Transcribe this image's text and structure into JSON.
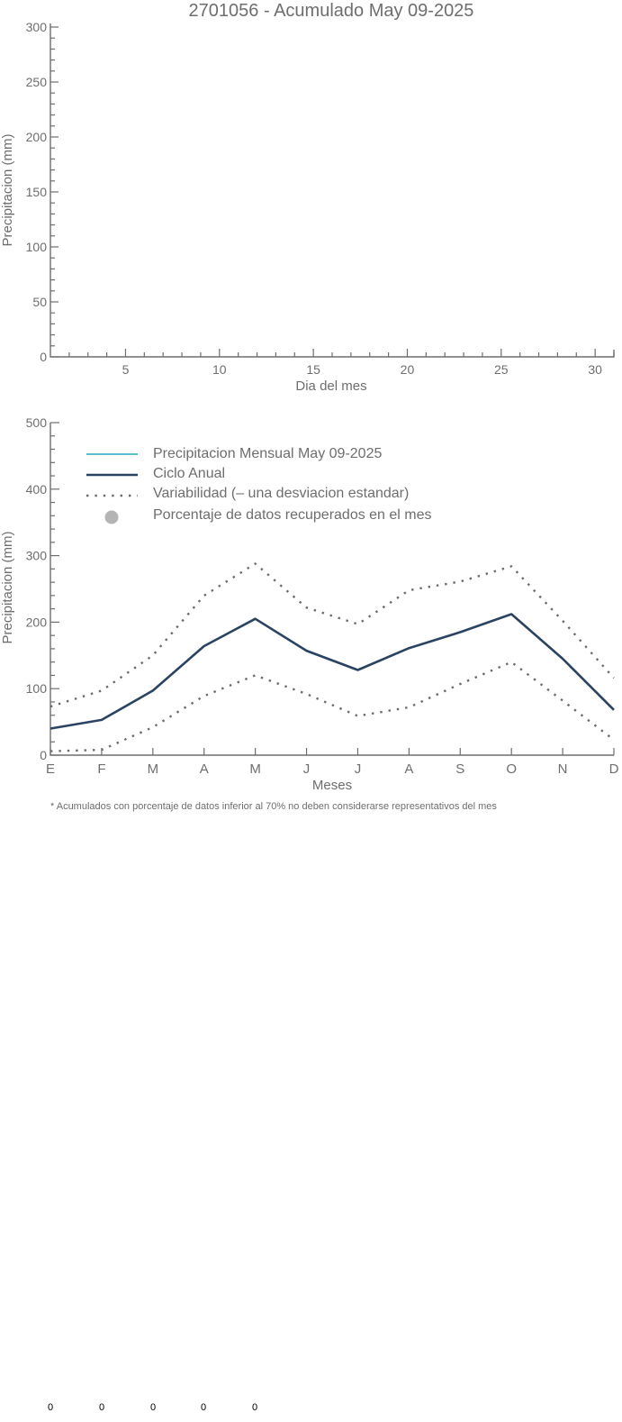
{
  "colors": {
    "axis": "#6e6e6e",
    "monthly_precip": "#40b4c8",
    "annual_cycle": "#2a4361",
    "variability": "#6b6b6b",
    "pct_recovered": "#b4b4b4"
  },
  "chart_data": [
    {
      "type": "bar",
      "title": "2701056 - Acumulado May 09-2025",
      "xlabel": "Dia del mes",
      "ylabel": "Precipitacion (mm)",
      "xlim": [
        1,
        31
      ],
      "ylim": [
        0,
        300
      ],
      "xticks": [
        5,
        10,
        15,
        20,
        25,
        30
      ],
      "yticks": [
        0,
        50,
        100,
        150,
        200,
        250,
        300
      ],
      "series": []
    },
    {
      "type": "line",
      "xlabel": "Meses",
      "ylabel": "Precipitacion (mm)",
      "ylim": [
        0,
        500
      ],
      "yticks": [
        0,
        100,
        200,
        300,
        400,
        500
      ],
      "categories": [
        "E",
        "F",
        "M",
        "A",
        "M",
        "J",
        "J",
        "A",
        "S",
        "O",
        "N",
        "D"
      ],
      "legend": [
        {
          "label": "Precipitacion Mensual May 09-2025",
          "style": "line",
          "color": "#40b4c8"
        },
        {
          "label": "Ciclo Anual",
          "style": "line",
          "color": "#2a4361"
        },
        {
          "label": "Variabilidad (– una desviacion estandar)",
          "style": "dotted",
          "color": "#6b6b6b"
        },
        {
          "label": "Porcentaje de datos recuperados en el mes",
          "style": "dot",
          "color": "#b4b4b4"
        }
      ],
      "series": [
        {
          "name": "Ciclo Anual",
          "values": [
            40,
            53,
            97,
            164,
            205,
            157,
            128,
            161,
            185,
            212,
            145,
            68
          ],
          "style": "line"
        },
        {
          "name": "Variabilidad (– una desviacion estandar)",
          "values": [
            73,
            97,
            150,
            240,
            288,
            222,
            197,
            248,
            261,
            284,
            202,
            116
          ],
          "style": "dotted"
        },
        {
          "name": "Variabilidad (– una desviacion estandar)",
          "values": [
            6,
            8,
            42,
            89,
            120,
            92,
            59,
            72,
            107,
            140,
            82,
            23
          ],
          "style": "dotted"
        }
      ],
      "footnote": "* Acumulados con porcentaje de datos inferior al 70% no deben considerarse representativos del mes"
    }
  ],
  "bottom_values": [
    "0",
    "0",
    "0",
    "0",
    "0"
  ]
}
